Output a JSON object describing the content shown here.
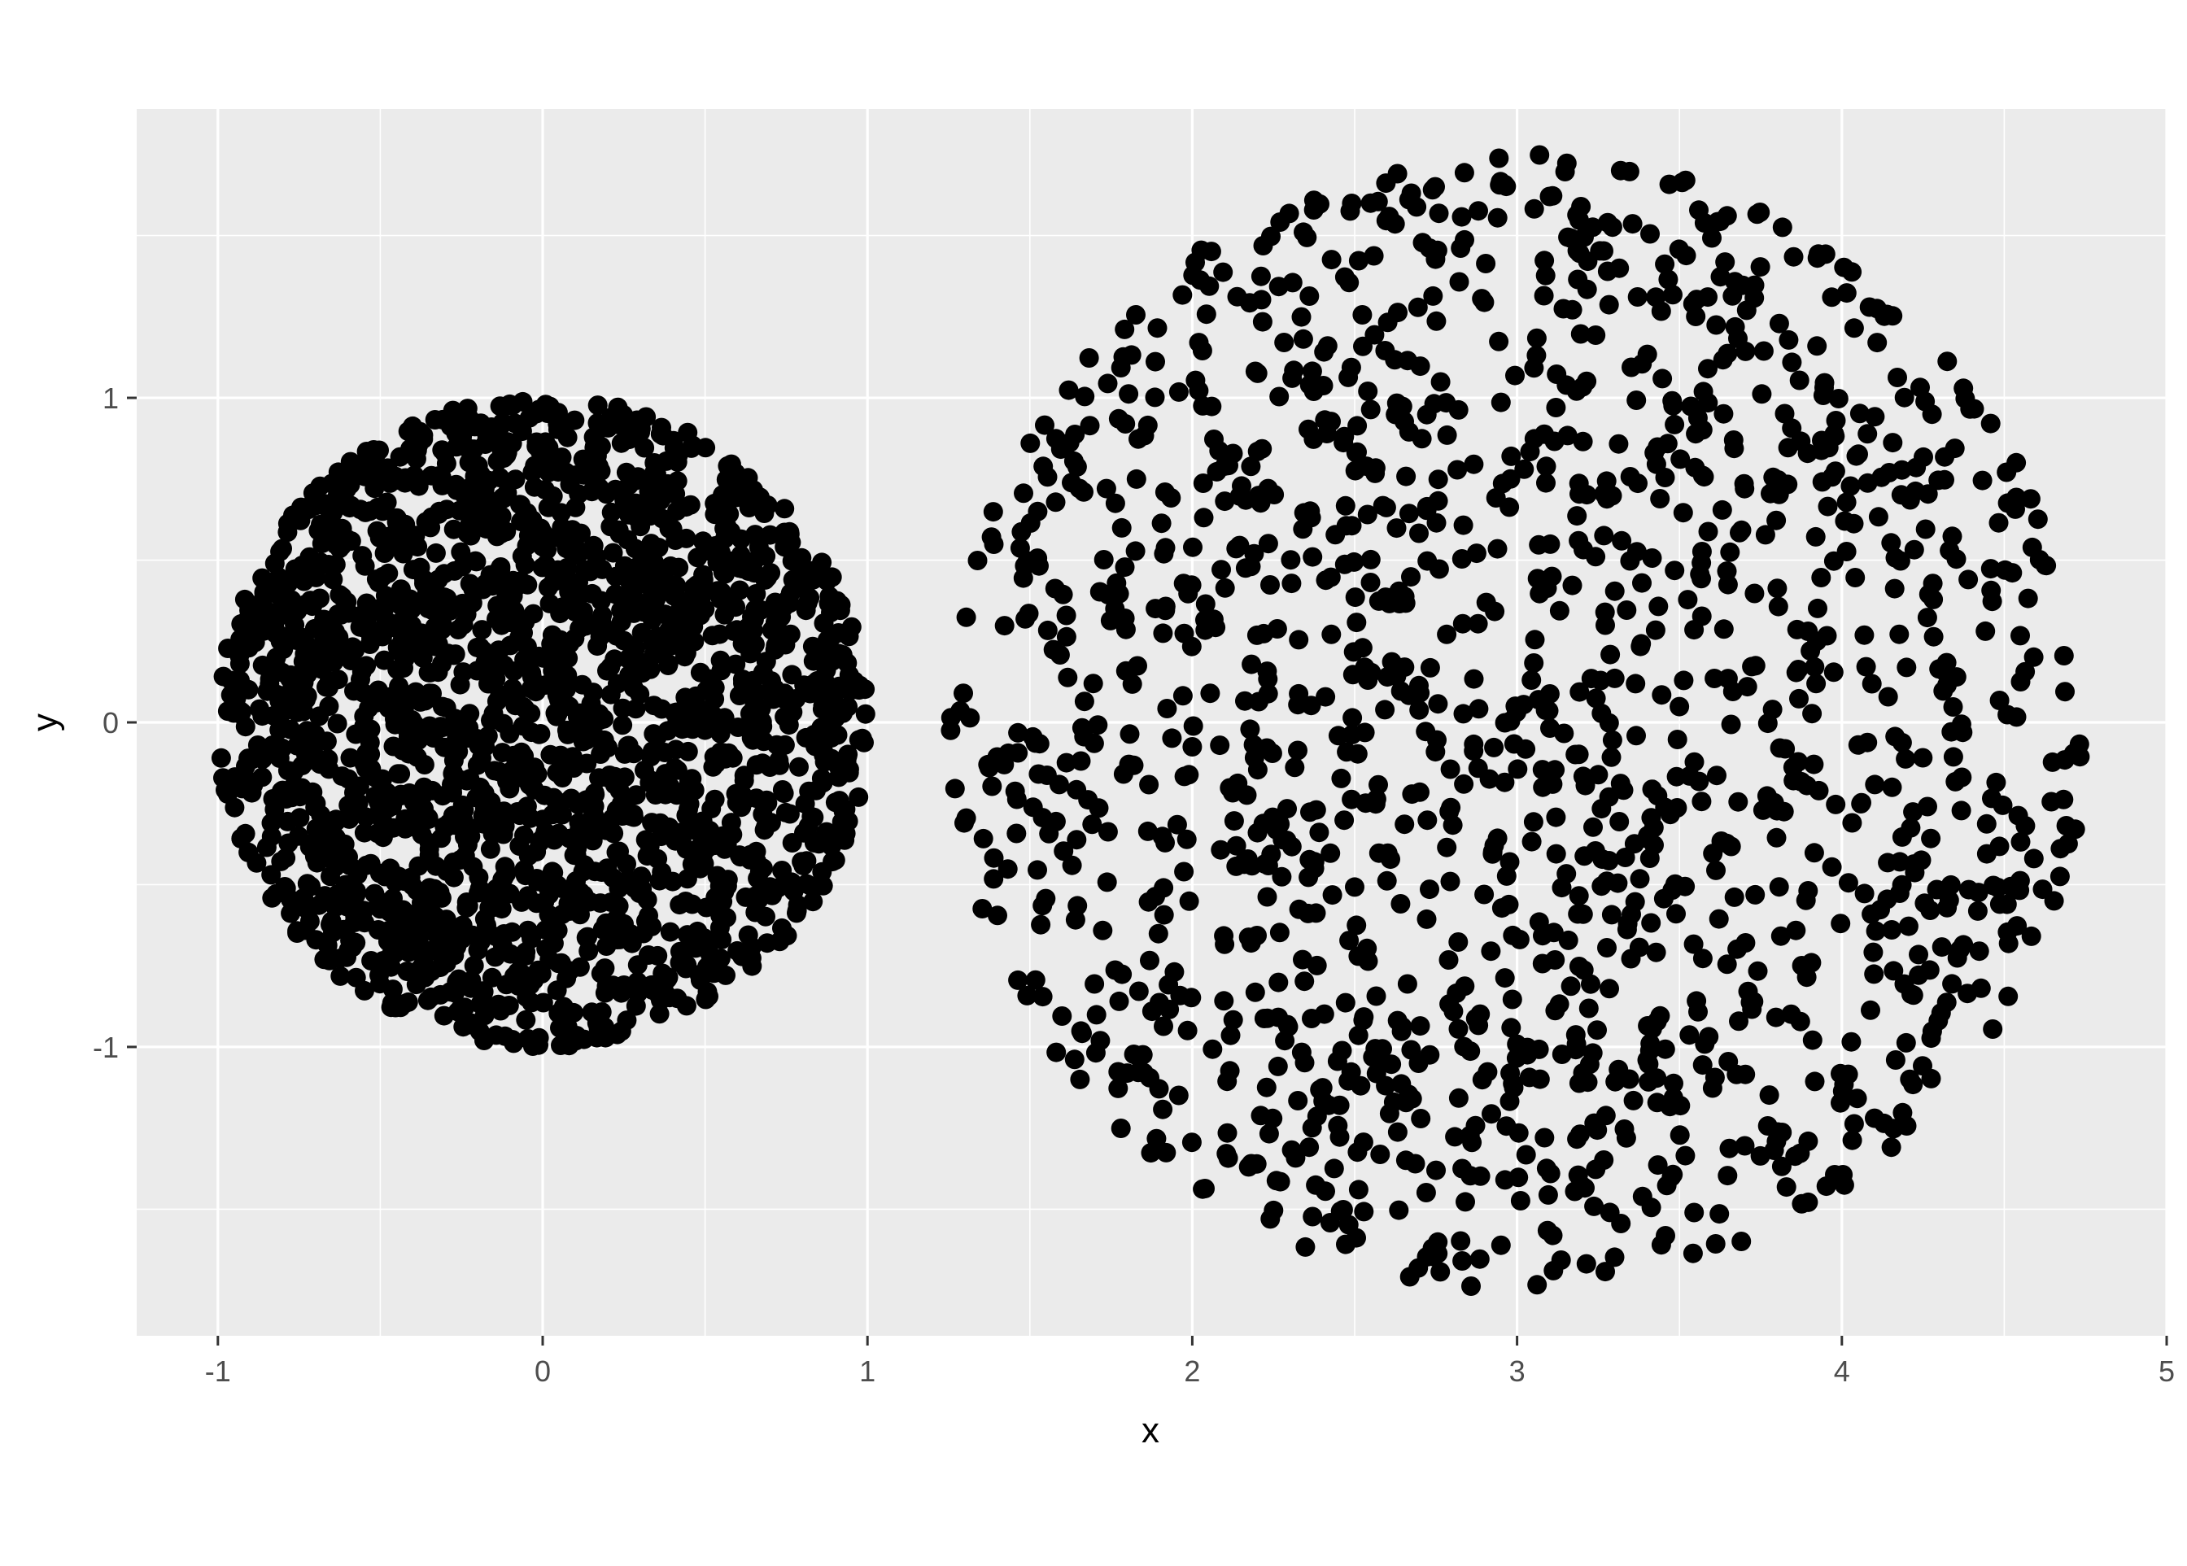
{
  "chart_data": {
    "type": "scatter",
    "title": "",
    "xlabel": "x",
    "ylabel": "y",
    "xlim": [
      -1.25,
      5
    ],
    "ylim": [
      -1.89,
      1.89
    ],
    "x_ticks": [
      -1,
      0,
      1,
      2,
      3,
      4,
      5
    ],
    "y_ticks": [
      -1,
      0,
      1
    ],
    "x_tick_labels": [
      "-1",
      "0",
      "1",
      "2",
      "3",
      "4",
      "5"
    ],
    "y_tick_labels": [
      "-1",
      "0",
      "1"
    ],
    "grid": true,
    "legend": "none",
    "background_color": "#EBEBEB",
    "grid_color": "#FFFFFF",
    "point_color": "#000000",
    "clusters": [
      {
        "center": [
          0,
          0
        ],
        "radius": 1.0,
        "n_points": 2000
      },
      {
        "center": [
          3,
          0
        ],
        "radius": 1.75,
        "n_points": 1500
      }
    ]
  }
}
